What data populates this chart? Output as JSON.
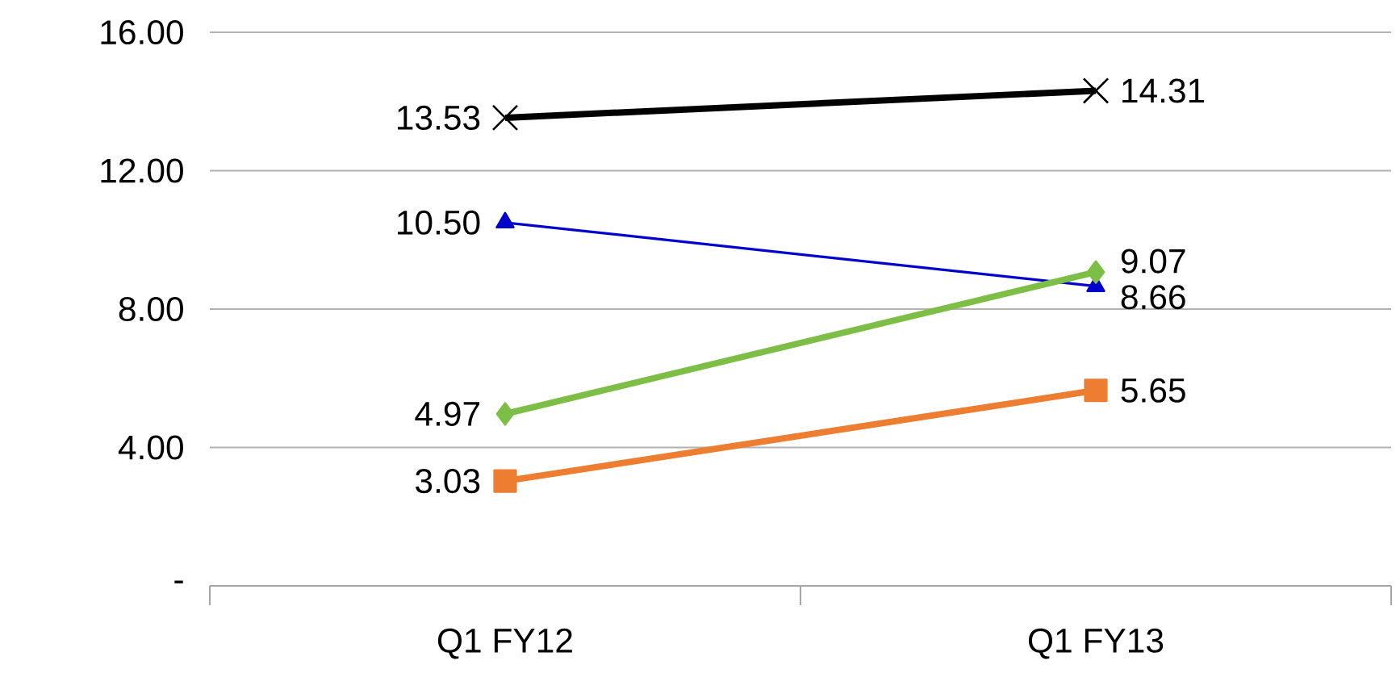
{
  "chart_data": {
    "type": "line",
    "categories": [
      "Q1 FY12",
      "Q1 FY13"
    ],
    "series": [
      {
        "color": "#000000",
        "marker": "cross",
        "values": [
          13.53,
          14.31
        ],
        "value_labels": [
          "13.53",
          "14.31"
        ]
      },
      {
        "color": "#0000cc",
        "marker": "triangle",
        "values": [
          10.5,
          8.66
        ],
        "value_labels": [
          "10.50",
          "8.66"
        ]
      },
      {
        "color": "#7dbf46",
        "marker": "diamond",
        "values": [
          4.97,
          9.07
        ],
        "value_labels": [
          "4.97",
          "9.07"
        ]
      },
      {
        "color": "#ed7d31",
        "marker": "square",
        "values": [
          3.03,
          5.65
        ],
        "value_labels": [
          "3.03",
          "5.65"
        ]
      }
    ],
    "ylim": [
      0,
      16
    ],
    "yticks": [
      {
        "value": 0,
        "label": "-"
      },
      {
        "value": 4,
        "label": "4.00"
      },
      {
        "value": 8,
        "label": "8.00"
      },
      {
        "value": 12,
        "label": "12.00"
      },
      {
        "value": 16,
        "label": "16.00"
      }
    ],
    "grid": "y"
  }
}
